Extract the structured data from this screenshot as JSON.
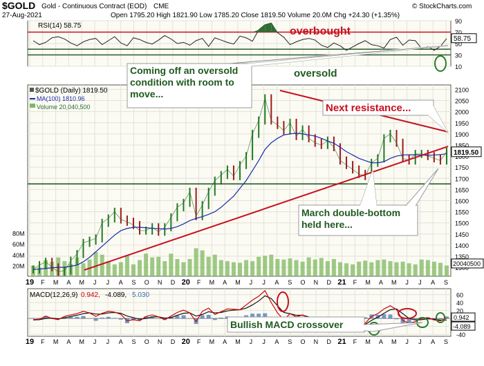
{
  "header": {
    "symbol": "$GOLD",
    "name": "Gold - Continuous Contract (EOD)",
    "exchange": "CME",
    "date": "27-Aug-2021",
    "ohlc": "Open 1795.20  High 1821.90  Low 1785.20  Close 1819.50  Volume 20.0M  Chg +24.30 (+1.35%)",
    "source": "© StockCharts.com"
  },
  "colors": {
    "price": "#207a20",
    "ma": "#1a2aa8",
    "volume": "#7fb85f",
    "rsi": "#222222",
    "rsi_band": "#c8101e",
    "rsi_fill": "#2f6e33",
    "macd": "#cc0000",
    "signal": "#111111",
    "histogram": "#3b6fb5",
    "annotation": "#c8101e",
    "callout_text": "#1f5a1f"
  },
  "chart_data": [
    {
      "type": "line",
      "title": "RSI(14) 58.75",
      "last_label": "58.75",
      "ylim": [
        10,
        90
      ],
      "yticks": [
        "90",
        "70",
        "50",
        "30",
        "10"
      ],
      "levels": [
        70,
        30
      ],
      "series": [
        {
          "name": "RSI(14)",
          "values": [
            55,
            48,
            52,
            60,
            62,
            58,
            51,
            46,
            53,
            57,
            59,
            48,
            55,
            62,
            51,
            46,
            60,
            57,
            52,
            49,
            56,
            64,
            58,
            50,
            52,
            47,
            55,
            59,
            45,
            60,
            56,
            52,
            49,
            63,
            60,
            54,
            74,
            83,
            86,
            69,
            61,
            48,
            53,
            57,
            59,
            56,
            47,
            43,
            51,
            46,
            38,
            44,
            50,
            55,
            48,
            46,
            42,
            57,
            61,
            47,
            56,
            55,
            41,
            45,
            38,
            45,
            58.75
          ]
        }
      ]
    },
    {
      "type": "line",
      "title": "$GOLD (Daily) 1819.50",
      "x_labels": [
        "19",
        "F",
        "M",
        "A",
        "M",
        "J",
        "J",
        "A",
        "S",
        "O",
        "N",
        "D",
        "20",
        "F",
        "M",
        "A",
        "M",
        "J",
        "J",
        "A",
        "S",
        "O",
        "N",
        "D",
        "21",
        "F",
        "M",
        "A",
        "M",
        "J",
        "J",
        "A",
        "S"
      ],
      "yticks": [
        "2100",
        "2050",
        "2000",
        "1950",
        "1900",
        "1850",
        "1800",
        "1750",
        "1700",
        "1650",
        "1600",
        "1550",
        "1500",
        "1450",
        "1400",
        "1350",
        "1300"
      ],
      "ylim": [
        1260,
        2120
      ],
      "last_label": "1819.50",
      "levels": [
        1675
      ],
      "series": [
        {
          "name": "$GOLD (Daily) 1819.50",
          "values": [
            1290,
            1310,
            1325,
            1300,
            1280,
            1285,
            1330,
            1360,
            1410,
            1420,
            1430,
            1500,
            1520,
            1550,
            1515,
            1505,
            1490,
            1465,
            1465,
            1480,
            1460,
            1480,
            1525,
            1570,
            1590,
            1640,
            1530,
            1580,
            1640,
            1690,
            1715,
            1740,
            1710,
            1760,
            1800,
            1900,
            1960,
            2060,
            1960,
            1940,
            1915,
            1950,
            1890,
            1920,
            1880,
            1860,
            1850,
            1870,
            1840,
            1780,
            1760,
            1740,
            1720,
            1710,
            1770,
            1790,
            1880,
            1900,
            1860,
            1790,
            1780,
            1810,
            1810,
            1800,
            1790,
            1780,
            1819.5
          ]
        },
        {
          "name": "MA(100) 1810.96",
          "values": [
            1290,
            1292,
            1295,
            1298,
            1300,
            1300,
            1305,
            1310,
            1325,
            1345,
            1370,
            1395,
            1420,
            1445,
            1465,
            1475,
            1480,
            1480,
            1478,
            1475,
            1474,
            1472,
            1475,
            1483,
            1495,
            1510,
            1520,
            1528,
            1538,
            1550,
            1570,
            1595,
            1620,
            1655,
            1690,
            1735,
            1780,
            1830,
            1860,
            1880,
            1895,
            1900,
            1903,
            1900,
            1895,
            1890,
            1880,
            1868,
            1858,
            1840,
            1820,
            1805,
            1790,
            1780,
            1770,
            1770,
            1775,
            1790,
            1800,
            1805,
            1806,
            1806,
            1805,
            1804,
            1805,
            1807,
            1810.96
          ]
        }
      ]
    },
    {
      "type": "bar",
      "title": "Volume 20,040,500",
      "last_label": "20040500",
      "yticks": [
        "80M",
        "60M",
        "40M",
        "20M"
      ],
      "ylim": [
        0,
        100
      ],
      "series": [
        {
          "name": "Volume",
          "values": [
            20,
            16,
            30,
            27,
            35,
            28,
            23,
            35,
            24,
            31,
            45,
            40,
            28,
            22,
            26,
            38,
            22,
            30,
            42,
            35,
            36,
            28,
            42,
            32,
            26,
            32,
            52,
            48,
            36,
            40,
            30,
            28,
            26,
            25,
            30,
            28,
            36,
            38,
            40,
            32,
            31,
            33,
            30,
            27,
            35,
            31,
            34,
            28,
            32,
            26,
            24,
            22,
            27,
            29,
            26,
            30,
            31,
            28,
            26,
            27,
            24,
            22,
            31,
            30,
            27,
            25,
            20
          ]
        }
      ]
    },
    {
      "type": "line",
      "title": "MACD(12,26,9) 0.942, -4.089, 5.030",
      "x_labels": [
        "19",
        "F",
        "M",
        "A",
        "M",
        "J",
        "J",
        "A",
        "S",
        "O",
        "N",
        "D",
        "20",
        "F",
        "M",
        "A",
        "M",
        "J",
        "J",
        "A",
        "S",
        "O",
        "N",
        "D",
        "21",
        "F",
        "M",
        "A",
        "M",
        "J",
        "J",
        "A",
        "S"
      ],
      "ylim": [
        -45,
        75
      ],
      "yticks": [
        "60",
        "40",
        "20",
        "0",
        "-20",
        "-40"
      ],
      "last_labels": [
        "0.942",
        "-4.089"
      ],
      "series": [
        {
          "name": "MACD(12,26,9) 0.942",
          "values": [
            -3,
            -2,
            6,
            0,
            -3,
            5,
            9,
            12,
            18,
            14,
            5,
            13,
            18,
            16,
            10,
            -6,
            -3,
            -6,
            5,
            9,
            4,
            -3,
            6,
            15,
            21,
            14,
            -8,
            18,
            26,
            10,
            17,
            24,
            23,
            22,
            34,
            46,
            56,
            70,
            40,
            14,
            -4,
            12,
            4,
            9,
            0,
            -2,
            -7,
            4,
            -3,
            -16,
            -22,
            -21,
            -16,
            -12,
            5,
            12,
            24,
            32,
            22,
            -5,
            -12,
            -8,
            0,
            2,
            -4,
            -6,
            0.942
          ]
        },
        {
          "name": "-4.089",
          "values": [
            -4,
            -3,
            0,
            1,
            -1,
            1,
            5,
            8,
            12,
            14,
            11,
            11,
            14,
            15,
            13,
            6,
            2,
            -2,
            0,
            4,
            4,
            1,
            2,
            8,
            13,
            14,
            6,
            10,
            17,
            14,
            15,
            19,
            21,
            22,
            26,
            34,
            44,
            57,
            50,
            32,
            15,
            12,
            8,
            8,
            4,
            1,
            -3,
            0,
            -1,
            -8,
            -15,
            -19,
            -18,
            -15,
            -5,
            3,
            13,
            22,
            24,
            12,
            0,
            -4,
            -3,
            -1,
            -2,
            -4,
            -4.089
          ]
        },
        {
          "name": "5.030",
          "values": [
            1,
            1,
            6,
            -1,
            -2,
            4,
            4,
            4,
            6,
            0,
            -6,
            2,
            4,
            1,
            -3,
            -12,
            -5,
            -4,
            5,
            5,
            0,
            -4,
            4,
            7,
            8,
            0,
            -14,
            8,
            9,
            -4,
            2,
            5,
            2,
            0,
            8,
            12,
            12,
            13,
            -10,
            -18,
            -19,
            0,
            -4,
            1,
            -4,
            -3,
            -4,
            4,
            -2,
            -8,
            -7,
            -2,
            2,
            3,
            10,
            9,
            11,
            10,
            -2,
            -17,
            -12,
            -4,
            3,
            3,
            -2,
            -2,
            5.03
          ]
        }
      ]
    }
  ],
  "annotations": {
    "overbought": "overbought",
    "oversold": "oversold",
    "coming_off": "Coming off an oversold\ncondition with room to\nmove...",
    "next_resistance": "Next resistance...",
    "double_bottom": "March double-bottom\nheld here...",
    "macd_crossover": "Bullish MACD crossover"
  }
}
